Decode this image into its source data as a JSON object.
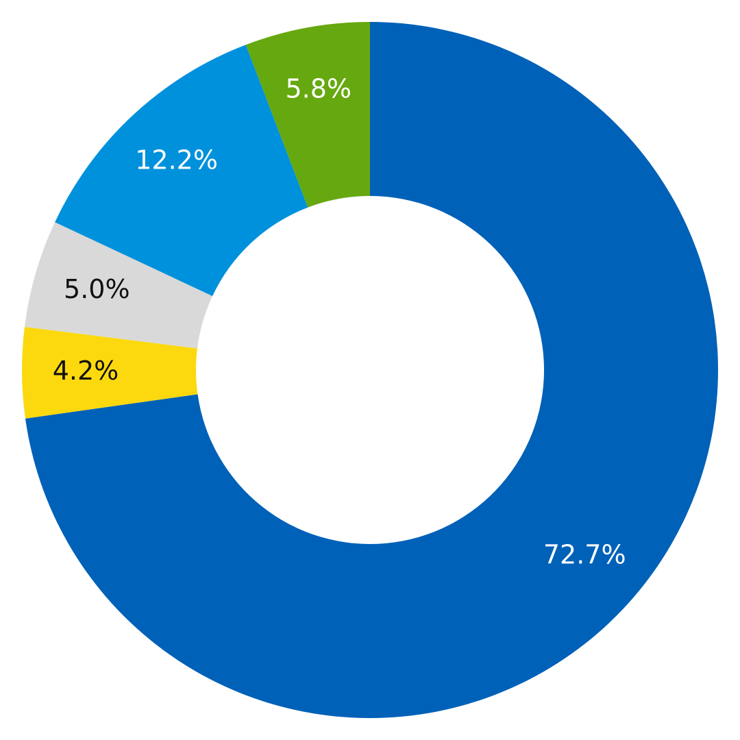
{
  "chart_data": {
    "type": "donut",
    "values": [
      72.7,
      4.2,
      5.0,
      12.2,
      5.8
    ],
    "value_labels": [
      "72.7%",
      "4.2%",
      "5.0%",
      "12.2%",
      "5.8%"
    ],
    "colors": [
      "#0061b8",
      "#fcd90f",
      "#d9d9d9",
      "#0091dc",
      "#66a80f"
    ],
    "label_colors": [
      "#ffffff",
      "#111111",
      "#111111",
      "#ffffff",
      "#ffffff"
    ],
    "start_angle": 0,
    "direction": "clockwise"
  }
}
